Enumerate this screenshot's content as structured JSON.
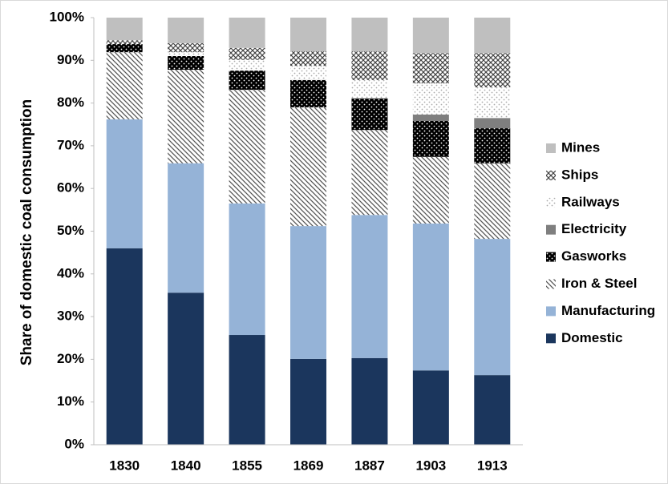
{
  "chart_data": {
    "type": "stacked-bar",
    "y_label": "Share of domestic coal consumption",
    "categories": [
      "1830",
      "1840",
      "1855",
      "1869",
      "1887",
      "1903",
      "1913"
    ],
    "series": [
      {
        "name": "Domestic",
        "color": "#1b365d",
        "values": [
          46.0,
          35.6,
          25.7,
          20.1,
          20.3,
          17.4,
          16.3
        ]
      },
      {
        "name": "Manufacturing",
        "color": "#95b3d7",
        "values": [
          30.2,
          30.3,
          30.8,
          31.1,
          33.5,
          34.4,
          31.9
        ]
      },
      {
        "name": "Iron & Steel",
        "color": "#555555",
        "hatch": "diagonal",
        "values": [
          15.7,
          21.9,
          26.6,
          27.8,
          19.9,
          15.6,
          17.7
        ]
      },
      {
        "name": "Gasworks",
        "color": "#000000",
        "hatch": "dots",
        "values": [
          1.9,
          3.2,
          4.5,
          6.4,
          7.4,
          8.4,
          8.2
        ]
      },
      {
        "name": "Electricity",
        "color": "#7f7f7f",
        "values": [
          0,
          0,
          0,
          0,
          0,
          1.5,
          2.4
        ]
      },
      {
        "name": "Railways",
        "color": "#aaaaaa",
        "hatch": "sparse-dots",
        "values": [
          0,
          0.9,
          2.5,
          3.3,
          4.3,
          7.3,
          7.2
        ]
      },
      {
        "name": "Ships",
        "color": "#444444",
        "hatch": "crosshatch",
        "values": [
          0.9,
          2.1,
          2.8,
          3.4,
          6.7,
          7.1,
          8.0
        ]
      },
      {
        "name": "Mines",
        "color": "#bfbfbf",
        "values": [
          5.3,
          6.0,
          7.1,
          7.9,
          7.9,
          8.3,
          8.3
        ]
      }
    ],
    "ylim": [
      0,
      100
    ],
    "yticks": [
      {
        "value": 0,
        "label": "0%"
      },
      {
        "value": 10,
        "label": "10%"
      },
      {
        "value": 20,
        "label": "20%"
      },
      {
        "value": 30,
        "label": "30%"
      },
      {
        "value": 40,
        "label": "40%"
      },
      {
        "value": 50,
        "label": "50%"
      },
      {
        "value": 60,
        "label": "60%"
      },
      {
        "value": 70,
        "label": "70%"
      },
      {
        "value": 80,
        "label": "80%"
      },
      {
        "value": 90,
        "label": "90%"
      },
      {
        "value": 100,
        "label": "100%"
      }
    ],
    "grid": false,
    "legend": "right"
  }
}
